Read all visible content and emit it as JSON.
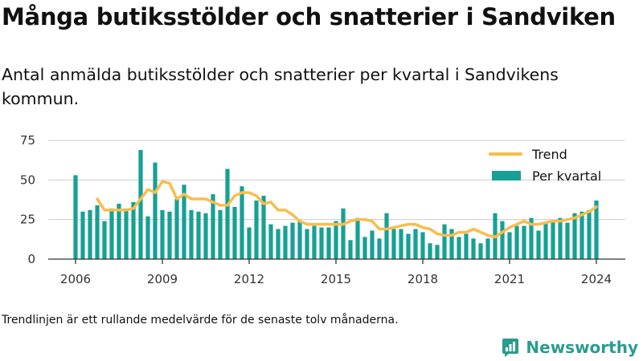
{
  "title": "Många butiksstölder och snatterier i Sandviken",
  "subtitle": "Antal anmälda butiksstölder och snatterier per kvartal i Sandvikens kommun.",
  "footnote": "Trendlinjen är ett rullande medelvärde för de senaste tolv månaderna.",
  "brand": "Newsworthy",
  "colors": {
    "bar": "#16a096",
    "trend": "#f9bd4d",
    "axis": "#333333",
    "grid": "#cccccc",
    "brand": "#2a9c8f"
  },
  "chart_data": {
    "type": "bar",
    "xlabel": "",
    "ylabel": "",
    "ylim": [
      0,
      80
    ],
    "yticks": [
      0,
      25,
      50,
      75
    ],
    "xticks": [
      "2006",
      "2009",
      "2012",
      "2015",
      "2018",
      "2021",
      "2024"
    ],
    "grid": true,
    "legend_position": "top-right",
    "start_year": 2006,
    "series": [
      {
        "name": "Per kvartal",
        "type": "bar",
        "values": [
          53,
          30,
          31,
          34,
          24,
          32,
          35,
          32,
          36,
          69,
          27,
          61,
          31,
          30,
          38,
          47,
          31,
          30,
          29,
          41,
          31,
          57,
          33,
          46,
          20,
          37,
          40,
          22,
          19,
          21,
          23,
          24,
          19,
          21,
          20,
          20,
          24,
          32,
          12,
          26,
          14,
          18,
          13,
          29,
          19,
          19,
          16,
          19,
          17,
          10,
          9,
          22,
          19,
          14,
          16,
          13,
          10,
          13,
          29,
          24,
          17,
          21,
          21,
          26,
          18,
          23,
          24,
          26,
          23,
          29,
          30,
          31,
          37
        ]
      },
      {
        "name": "Trend",
        "type": "line",
        "values": [
          null,
          null,
          null,
          38,
          31,
          31,
          31,
          31,
          32,
          38,
          44,
          42,
          49,
          48,
          38,
          41,
          38,
          38,
          38,
          36,
          34,
          34,
          40,
          42,
          42,
          40,
          35,
          36,
          31,
          31,
          28,
          24,
          22,
          22,
          22,
          22,
          22,
          22,
          24,
          25,
          25,
          24,
          19,
          19,
          20,
          21,
          22,
          22,
          20,
          19,
          16,
          15,
          15,
          17,
          17,
          19,
          17,
          15,
          14,
          17,
          20,
          22,
          24,
          22,
          22,
          23,
          24,
          24,
          25,
          26,
          28,
          30,
          33
        ]
      }
    ]
  }
}
